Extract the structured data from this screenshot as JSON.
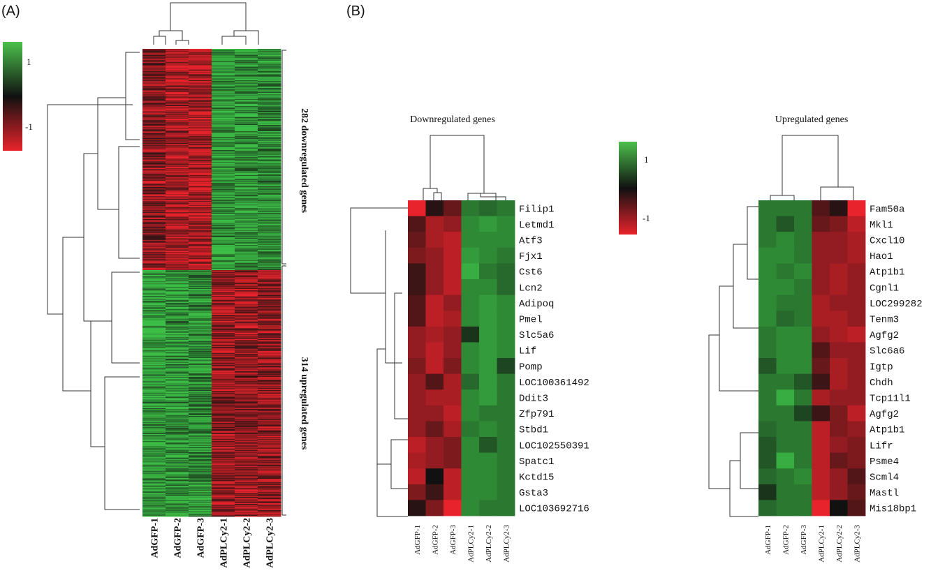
{
  "panels": {
    "A": "(A)",
    "B": "(B)"
  },
  "chart_data": [
    {
      "type": "heatmap",
      "panel": "(A)",
      "columns": [
        "AdGFP-1",
        "AdGFP-2",
        "AdGFP-3",
        "AdPLCy2-1",
        "AdPLCy2-2",
        "AdPLCy2-3"
      ],
      "groups": [
        {
          "label": "282 downregulated genes",
          "rows": 282,
          "pattern": [
            -0.55,
            -0.7,
            -0.75,
            0.75,
            0.75,
            0.7
          ]
        },
        {
          "label": "314 upregulated genes",
          "rows": 314,
          "pattern": [
            0.8,
            0.75,
            0.7,
            -0.6,
            -0.6,
            -0.6
          ]
        }
      ],
      "scale": {
        "max": "1",
        "min": "-1",
        "high_color": "#4cc04c",
        "mid_color": "#111111",
        "low_color": "#e8232b"
      }
    },
    {
      "type": "heatmap",
      "panel": "(B)",
      "title": "Downregulated genes",
      "columns": [
        "AdGFP-1",
        "AdGFP-2",
        "AdGFP-3",
        "AdPLCy2-1",
        "AdPLCy2-2",
        "AdPLCy2-3"
      ],
      "rows": [
        "Filip1",
        "Letmd1",
        "Atf3",
        "Fjx1",
        "Cst6",
        "Lcn2",
        "Adipoq",
        "Pmel",
        "Slc5a6",
        "Lif",
        "Pomp",
        "LOC100361492",
        "Ddit3",
        "Zfp791",
        "Stbd1",
        "LOC102550391",
        "Spatc1",
        "Kctd15",
        "Gsta3",
        "LOC103692716"
      ],
      "values": [
        [
          -1.0,
          -0.1,
          -0.4,
          0.6,
          0.5,
          0.6
        ],
        [
          -0.3,
          -0.7,
          -0.6,
          0.7,
          0.8,
          0.7
        ],
        [
          -0.4,
          -0.7,
          -0.8,
          0.7,
          0.7,
          0.7
        ],
        [
          -0.5,
          -0.6,
          -0.8,
          0.8,
          0.7,
          0.6
        ],
        [
          -0.2,
          -0.6,
          -0.8,
          0.9,
          0.6,
          0.5
        ],
        [
          -0.2,
          -0.6,
          -0.8,
          0.7,
          0.7,
          0.5
        ],
        [
          -0.3,
          -0.8,
          -0.6,
          0.7,
          0.8,
          0.7
        ],
        [
          -0.3,
          -0.8,
          -0.7,
          0.7,
          0.8,
          0.7
        ],
        [
          -0.6,
          -0.7,
          -0.6,
          0.2,
          0.8,
          0.7
        ],
        [
          -0.6,
          -0.8,
          -0.6,
          0.7,
          0.8,
          0.7
        ],
        [
          -0.5,
          -0.8,
          -0.5,
          0.7,
          0.8,
          0.3
        ],
        [
          -0.6,
          -0.3,
          -0.7,
          0.5,
          0.8,
          0.6
        ],
        [
          -0.6,
          -0.7,
          -0.7,
          0.7,
          0.8,
          0.6
        ],
        [
          -0.6,
          -0.6,
          -0.8,
          0.7,
          0.6,
          0.6
        ],
        [
          -0.6,
          -0.4,
          -0.7,
          0.6,
          0.7,
          0.6
        ],
        [
          -0.8,
          -0.6,
          -0.5,
          0.7,
          0.4,
          0.6
        ],
        [
          -0.7,
          -0.6,
          -0.5,
          0.7,
          0.7,
          0.6
        ],
        [
          -0.8,
          0.0,
          -0.8,
          0.7,
          0.7,
          0.6
        ],
        [
          -0.5,
          -0.2,
          -0.8,
          0.7,
          0.7,
          0.6
        ],
        [
          -0.1,
          -0.5,
          -1.0,
          0.7,
          0.6,
          0.6
        ]
      ],
      "scale": {
        "max": "1",
        "min": "-1"
      }
    },
    {
      "type": "heatmap",
      "panel": "(B)",
      "title": "Upregulated genes",
      "columns": [
        "AdGFP-1",
        "AdGFP-2",
        "AdGFP-3",
        "AdPLCy2-1",
        "AdPLCy2-2",
        "AdPLCy2-3"
      ],
      "rows": [
        "Fam50a",
        "Mkl1",
        "Cxcl10",
        "Hao1",
        "Atp1b1",
        "Cgnl1",
        "LOC299282",
        "Tenm3",
        "Agfg2",
        "Slc6a6",
        "Igtp",
        "Chdh",
        "Tcp11l1",
        "Agfg2",
        "Atp1b1",
        "Lifr",
        "Psme4",
        "Scml4",
        "Mastl",
        "Mis18bp1"
      ],
      "values": [
        [
          0.6,
          0.6,
          0.6,
          -0.3,
          -0.1,
          -1.0
        ],
        [
          0.6,
          0.4,
          0.6,
          -0.4,
          -0.5,
          -0.8
        ],
        [
          0.6,
          0.7,
          0.6,
          -0.6,
          -0.6,
          -0.7
        ],
        [
          0.7,
          0.7,
          0.6,
          -0.6,
          -0.6,
          -0.7
        ],
        [
          0.7,
          0.6,
          0.7,
          -0.6,
          -0.7,
          -0.6
        ],
        [
          0.7,
          0.7,
          0.6,
          -0.6,
          -0.7,
          -0.6
        ],
        [
          0.7,
          0.6,
          0.6,
          -0.7,
          -0.6,
          -0.6
        ],
        [
          0.7,
          0.5,
          0.6,
          -0.7,
          -0.7,
          -0.6
        ],
        [
          0.6,
          0.7,
          0.7,
          -0.6,
          -0.7,
          -0.8
        ],
        [
          0.6,
          0.7,
          0.7,
          -0.3,
          -0.6,
          -0.6
        ],
        [
          0.4,
          0.7,
          0.7,
          -0.4,
          -0.7,
          -0.6
        ],
        [
          0.6,
          0.6,
          0.4,
          -0.2,
          -0.7,
          -0.6
        ],
        [
          0.6,
          0.9,
          0.6,
          -0.7,
          -0.6,
          -0.6
        ],
        [
          0.6,
          0.6,
          0.3,
          -0.2,
          -0.5,
          -0.8
        ],
        [
          0.5,
          0.6,
          0.6,
          -0.8,
          -0.5,
          -0.6
        ],
        [
          0.4,
          0.6,
          0.6,
          -0.8,
          -0.6,
          -0.5
        ],
        [
          0.4,
          0.9,
          0.6,
          -0.8,
          -0.4,
          -0.5
        ],
        [
          0.5,
          0.6,
          0.7,
          -0.8,
          -0.6,
          -0.3
        ],
        [
          0.2,
          0.6,
          0.6,
          -0.8,
          -0.6,
          -0.4
        ],
        [
          0.5,
          0.6,
          0.6,
          -1.0,
          0.0,
          -0.3
        ]
      ],
      "scale": {
        "max": "1",
        "min": "-1"
      }
    }
  ]
}
